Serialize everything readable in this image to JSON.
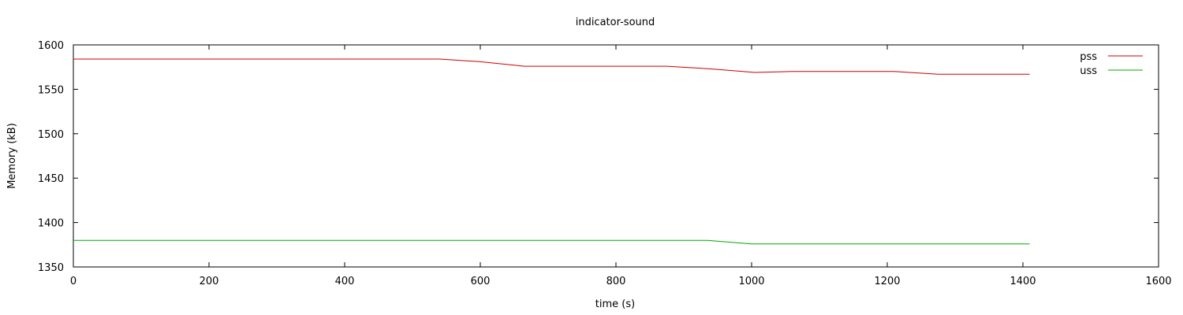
{
  "chart_data": {
    "type": "line",
    "title": "indicator-sound",
    "xlabel": "time (s)",
    "ylabel": "Memory (kB)",
    "xlim": [
      0,
      1600
    ],
    "ylim": [
      1350,
      1600
    ],
    "xticks": [
      0,
      200,
      400,
      600,
      800,
      1000,
      1200,
      1400,
      1600
    ],
    "yticks": [
      1350,
      1400,
      1450,
      1500,
      1550,
      1600
    ],
    "grid": false,
    "legend_position": "top-right",
    "series": [
      {
        "name": "pss",
        "color": "#cc0000",
        "x": [
          0,
          540,
          600,
          665,
          875,
          940,
          1005,
          1060,
          1210,
          1275,
          1410
        ],
        "y": [
          1584,
          1584,
          1581,
          1576,
          1576,
          1573,
          1569,
          1570,
          1570,
          1567,
          1567
        ]
      },
      {
        "name": "uss",
        "color": "#00aa00",
        "x": [
          0,
          935,
          1000,
          1410
        ],
        "y": [
          1380,
          1380,
          1376,
          1376
        ]
      }
    ]
  }
}
